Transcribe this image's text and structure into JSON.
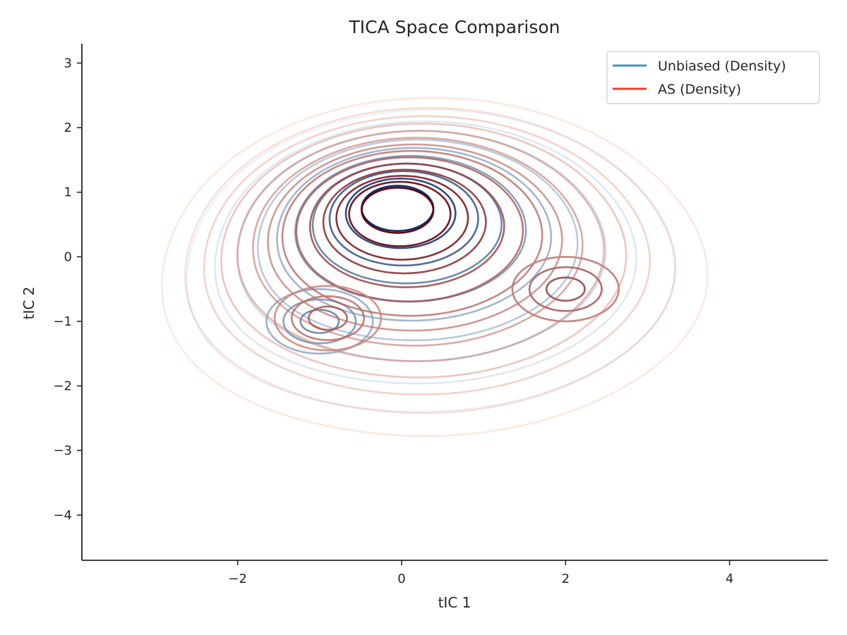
{
  "chart_data": {
    "type": "contour",
    "title": "TICA Space Comparison",
    "xlabel": "tIC 1",
    "ylabel": "tIC 2",
    "xlim": [
      -3.9,
      5.2
    ],
    "ylim": [
      -4.7,
      3.3
    ],
    "xticks": [
      -2,
      0,
      2,
      4
    ],
    "yticks": [
      3,
      2,
      1,
      0,
      -1,
      -2,
      -3,
      -4
    ],
    "grid": false,
    "legend_position": "upper right",
    "legend": [
      {
        "label": "Unbiased (Density)",
        "color": "#4292c6"
      },
      {
        "label": "AS (Density)",
        "color": "#ef3b2c"
      }
    ],
    "series": [
      {
        "name": "Unbiased (Density)",
        "colormap": "Blues",
        "color_light": "#c6dbef",
        "color_dark": "#08306b",
        "modes": [
          {
            "center": [
              -0.05,
              0.75
            ],
            "weight": 1.0
          },
          {
            "center": [
              -1.0,
              -1.0
            ],
            "weight": 0.55
          },
          {
            "center": [
              2.0,
              -0.5
            ],
            "weight": 0.3
          }
        ],
        "outer_extent": {
          "x": [
            -2.5,
            3.2
          ],
          "y": [
            -2.5,
            2.4
          ]
        },
        "levels": 10
      },
      {
        "name": "AS (Density)",
        "colormap": "Reds",
        "color_light": "#fcbba1",
        "color_dark": "#67000d",
        "modes": [
          {
            "center": [
              -0.05,
              0.72
            ],
            "weight": 1.0
          },
          {
            "center": [
              -0.9,
              -0.95
            ],
            "weight": 0.45
          },
          {
            "center": [
              2.0,
              -0.5
            ],
            "weight": 0.35
          }
        ],
        "outer_extent": {
          "x": [
            -2.8,
            3.55
          ],
          "y": [
            -2.9,
            2.6
          ]
        },
        "levels": 14
      }
    ]
  }
}
